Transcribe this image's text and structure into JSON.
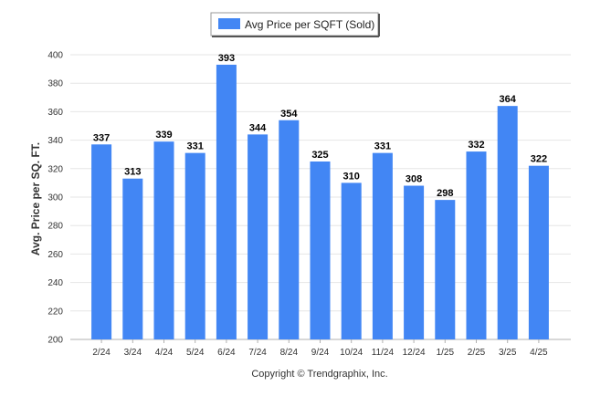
{
  "chart_data": {
    "type": "bar",
    "categories": [
      "2/24",
      "3/24",
      "4/24",
      "5/24",
      "6/24",
      "7/24",
      "8/24",
      "9/24",
      "10/24",
      "11/24",
      "12/24",
      "1/25",
      "2/25",
      "3/25",
      "4/25"
    ],
    "series": [
      {
        "name": "Avg Price per SQFT (Sold)",
        "values": [
          337,
          313,
          339,
          331,
          393,
          344,
          354,
          325,
          310,
          331,
          308,
          298,
          332,
          364,
          322
        ]
      }
    ],
    "ylabel": "Avg. Price per SQ. FT.",
    "xlabel": "",
    "ylim": [
      200,
      400
    ],
    "yticks": [
      200,
      220,
      240,
      260,
      280,
      300,
      320,
      340,
      360,
      380,
      400
    ],
    "grid": true,
    "legend_position": "top-center",
    "bar_color": "#4286f4",
    "footer": "Copyright © Trendgraphix, Inc."
  }
}
